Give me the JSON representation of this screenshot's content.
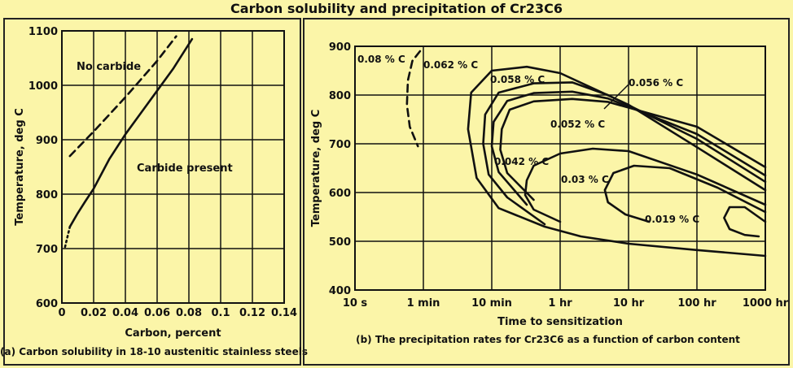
{
  "title": "Carbon solubility and precipitation of Cr23C6",
  "chart_data": [
    {
      "type": "line",
      "caption": "(a) Carbon solubility in 18-10 austenitic stainless steels",
      "xlabel": "Carbon, percent",
      "ylabel": "Temperature, deg C",
      "xlim": [
        0,
        0.14
      ],
      "ylim": [
        600,
        1100
      ],
      "x_ticks": [
        "0",
        "0.02",
        "0.04",
        "0.06",
        "0.08",
        "0.1",
        "0.12",
        "0.14"
      ],
      "y_ticks": [
        "600",
        "700",
        "800",
        "900",
        "1000",
        "1100"
      ],
      "grid": true,
      "annotations": [
        "No carbide",
        "Carbide present"
      ],
      "series": [
        {
          "style": "solid",
          "x": [
            0.005,
            0.01,
            0.015,
            0.02,
            0.03,
            0.04,
            0.05,
            0.06,
            0.07,
            0.082
          ],
          "y": [
            740,
            765,
            788,
            810,
            865,
            910,
            950,
            990,
            1030,
            1085
          ]
        },
        {
          "style": "dashed",
          "x": [
            0.005,
            0.02,
            0.04,
            0.06,
            0.072
          ],
          "y": [
            870,
            915,
            978,
            1045,
            1090
          ]
        },
        {
          "style": "dotted",
          "x": [
            0.002,
            0.005
          ],
          "y": [
            703,
            740
          ]
        }
      ]
    },
    {
      "type": "line",
      "caption": "(b) The precipitation rates for Cr23C6 as a function of carbon content",
      "xlabel": "Time to sensitization",
      "ylabel": "Temperature, deg C",
      "x_scale": "log",
      "ylim": [
        400,
        900
      ],
      "x_ticks": [
        "10 s",
        "1 min",
        "10 min",
        "1 hr",
        "10 hr",
        "100 hr",
        "1000 hr"
      ],
      "y_ticks": [
        "400",
        "500",
        "600",
        "700",
        "800",
        "900"
      ],
      "grid": true,
      "series": [
        {
          "name": "0.08 % C",
          "style": "dashed",
          "x": [
            "55 s",
            "45 s",
            "40 s",
            "39 s",
            "42 s",
            "52 s"
          ],
          "y": [
            890,
            870,
            830,
            780,
            735,
            695
          ]
        },
        {
          "name": "0.062 % C",
          "style": "solid",
          "x": [
            "1000 hr",
            "100 hr",
            "10 hr",
            "1 hr",
            "25 min",
            "10 min",
            "5 min",
            "4.5 min",
            "6 min",
            "12 min",
            "40 min",
            "2 hr",
            "10 hr",
            "100 hr",
            "1000 hr"
          ],
          "y": [
            605,
            693,
            780,
            845,
            858,
            850,
            805,
            730,
            630,
            568,
            530,
            510,
            495,
            482,
            470
          ]
        },
        {
          "name": "0.058 % C",
          "style": "solid",
          "x": [
            "1000 hr",
            "100 hr",
            "5 hr",
            "1.5 hr",
            "30 min",
            "12 min",
            "8 min",
            "7.5 min",
            "9 min",
            "15 min",
            "40 min"
          ],
          "y": [
            622,
            710,
            800,
            826,
            824,
            805,
            760,
            700,
            637,
            590,
            535
          ]
        },
        {
          "name": "0.056 % C",
          "style": "solid",
          "x": [
            "1000 hr",
            "100 hr",
            "5 hr",
            "1.5 hr",
            "30 min",
            "15 min",
            "10.5 min",
            "10 min",
            "12 min",
            "25 min"
          ],
          "y": [
            635,
            720,
            793,
            807,
            804,
            788,
            745,
            695,
            642,
            575
          ]
        },
        {
          "name": "0.052 % C",
          "style": "solid",
          "x": [
            "1000 hr",
            "100 hr",
            "5 hr",
            "1.5 hr",
            "30 min",
            "16 min",
            "13 min",
            "12.5 min",
            "15 min",
            "30 min"
          ],
          "y": [
            652,
            735,
            786,
            792,
            787,
            770,
            730,
            688,
            640,
            585
          ]
        },
        {
          "name": "0.042 % C",
          "style": "solid",
          "x": [
            "1000 hr",
            "100 hr",
            "10 hr",
            "3 hr",
            "1 hr",
            "30 min",
            "25 min",
            "24 min",
            "30 min",
            "1 hr"
          ],
          "y": [
            575,
            637,
            685,
            690,
            680,
            655,
            625,
            595,
            565,
            540
          ]
        },
        {
          "name": "0.03 % C",
          "style": "solid",
          "x": [
            "1000 hr",
            "200 hr",
            "40 hr",
            "12 hr",
            "6 hr",
            "4.5 hr",
            "5 hr",
            "9 hr",
            "20 hr"
          ],
          "y": [
            560,
            610,
            650,
            655,
            640,
            605,
            580,
            555,
            540
          ]
        },
        {
          "name": "0.019 % C",
          "style": "solid",
          "x": [
            "1000 hr",
            "500 hr",
            "300 hr",
            "250 hr",
            "300 hr",
            "500 hr",
            "800 hr"
          ],
          "y": [
            540,
            570,
            570,
            548,
            525,
            513,
            510
          ]
        }
      ]
    }
  ]
}
